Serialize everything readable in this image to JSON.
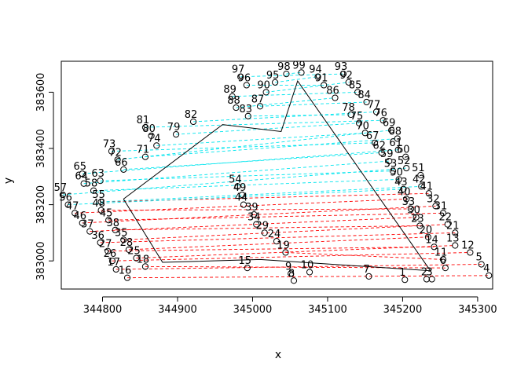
{
  "chart_data": {
    "type": "scatter",
    "title": "",
    "xlabel": "x",
    "ylabel": "y",
    "xlim": [
      344745,
      345320
    ],
    "ylim": [
      382900,
      383710
    ],
    "xticks": [
      344800,
      344900,
      345000,
      345100,
      345200,
      345300
    ],
    "yticks": [
      383000,
      383200,
      383400,
      383600
    ],
    "grid": false,
    "colors": {
      "polygon": "#000000",
      "red_segments": "#ff0000",
      "cyan_segments": "#00e5ee",
      "points": "#000000"
    },
    "points": [
      {
        "id": "1",
        "x": 345203,
        "y": 382933
      },
      {
        "id": "2",
        "x": 345232,
        "y": 382935
      },
      {
        "id": "3",
        "x": 345239,
        "y": 382935
      },
      {
        "id": "4",
        "x": 345315,
        "y": 382948
      },
      {
        "id": "5",
        "x": 345305,
        "y": 382988
      },
      {
        "id": "6",
        "x": 345257,
        "y": 382975
      },
      {
        "id": "7",
        "x": 345155,
        "y": 382945
      },
      {
        "id": "8",
        "x": 345055,
        "y": 382930
      },
      {
        "id": "9",
        "x": 345051,
        "y": 382955
      },
      {
        "id": "10",
        "x": 345076,
        "y": 382960
      },
      {
        "id": "11",
        "x": 345254,
        "y": 383005
      },
      {
        "id": "12",
        "x": 345290,
        "y": 383030
      },
      {
        "id": "13",
        "x": 345270,
        "y": 383055
      },
      {
        "id": "14",
        "x": 345242,
        "y": 383050
      },
      {
        "id": "15",
        "x": 344993,
        "y": 382975
      },
      {
        "id": "16",
        "x": 344833,
        "y": 382940
      },
      {
        "id": "17",
        "x": 344818,
        "y": 382970
      },
      {
        "id": "18",
        "x": 344857,
        "y": 382980
      },
      {
        "id": "19",
        "x": 345044,
        "y": 383030
      },
      {
        "id": "20",
        "x": 345234,
        "y": 383085
      },
      {
        "id": "21",
        "x": 345270,
        "y": 383100
      },
      {
        "id": "22",
        "x": 345260,
        "y": 383130
      },
      {
        "id": "23",
        "x": 345223,
        "y": 383125
      },
      {
        "id": "24",
        "x": 345032,
        "y": 383070
      },
      {
        "id": "25",
        "x": 344845,
        "y": 383010
      },
      {
        "id": "26",
        "x": 344813,
        "y": 383000
      },
      {
        "id": "27",
        "x": 344807,
        "y": 383035
      },
      {
        "id": "28",
        "x": 344835,
        "y": 383040
      },
      {
        "id": "29",
        "x": 345016,
        "y": 383100
      },
      {
        "id": "30",
        "x": 345218,
        "y": 383155
      },
      {
        "id": "31",
        "x": 345254,
        "y": 383170
      },
      {
        "id": "32",
        "x": 345244,
        "y": 383195
      },
      {
        "id": "33",
        "x": 345211,
        "y": 383185
      },
      {
        "id": "34",
        "x": 345005,
        "y": 383130
      },
      {
        "id": "35",
        "x": 344828,
        "y": 383075
      },
      {
        "id": "36",
        "x": 344797,
        "y": 383065
      },
      {
        "id": "37",
        "x": 344783,
        "y": 383105
      },
      {
        "id": "38",
        "x": 344817,
        "y": 383110
      },
      {
        "id": "39",
        "x": 345002,
        "y": 383165
      },
      {
        "id": "40",
        "x": 345205,
        "y": 383220
      },
      {
        "id": "41",
        "x": 345235,
        "y": 383240
      },
      {
        "id": "42",
        "x": 345225,
        "y": 383265
      },
      {
        "id": "43",
        "x": 345201,
        "y": 383255
      },
      {
        "id": "44",
        "x": 344988,
        "y": 383200
      },
      {
        "id": "45",
        "x": 344808,
        "y": 383145
      },
      {
        "id": "46",
        "x": 344773,
        "y": 383135
      },
      {
        "id": "47",
        "x": 344763,
        "y": 383170
      },
      {
        "id": "48",
        "x": 344798,
        "y": 383180
      },
      {
        "id": "49",
        "x": 344986,
        "y": 383235
      },
      {
        "id": "50",
        "x": 345195,
        "y": 383290
      },
      {
        "id": "51",
        "x": 345224,
        "y": 383305
      },
      {
        "id": "52",
        "x": 345205,
        "y": 383330
      },
      {
        "id": "53",
        "x": 345187,
        "y": 383320
      },
      {
        "id": "54",
        "x": 344980,
        "y": 383265
      },
      {
        "id": "55",
        "x": 344798,
        "y": 383210
      },
      {
        "id": "56",
        "x": 344754,
        "y": 383200
      },
      {
        "id": "57",
        "x": 344747,
        "y": 383235
      },
      {
        "id": "58",
        "x": 344788,
        "y": 383250
      },
      {
        "id": "59",
        "x": 345182,
        "y": 383355
      },
      {
        "id": "60",
        "x": 345204,
        "y": 383370
      },
      {
        "id": "61",
        "x": 345194,
        "y": 383395
      },
      {
        "id": "62",
        "x": 345172,
        "y": 383385
      },
      {
        "id": "63",
        "x": 344797,
        "y": 383285
      },
      {
        "id": "64",
        "x": 344775,
        "y": 383275
      },
      {
        "id": "65",
        "x": 344773,
        "y": 383310
      },
      {
        "id": "66",
        "x": 344828,
        "y": 383325
      },
      {
        "id": "67",
        "x": 345163,
        "y": 383420
      },
      {
        "id": "68",
        "x": 345193,
        "y": 383435
      },
      {
        "id": "69",
        "x": 345185,
        "y": 383465
      },
      {
        "id": "70",
        "x": 345150,
        "y": 383455
      },
      {
        "id": "71",
        "x": 344857,
        "y": 383370
      },
      {
        "id": "72",
        "x": 344820,
        "y": 383360
      },
      {
        "id": "73",
        "x": 344812,
        "y": 383390
      },
      {
        "id": "74",
        "x": 344872,
        "y": 383410
      },
      {
        "id": "75",
        "x": 345142,
        "y": 383490
      },
      {
        "id": "76",
        "x": 345174,
        "y": 383500
      },
      {
        "id": "77",
        "x": 345165,
        "y": 383530
      },
      {
        "id": "78",
        "x": 345131,
        "y": 383520
      },
      {
        "id": "79",
        "x": 344898,
        "y": 383450
      },
      {
        "id": "80",
        "x": 344865,
        "y": 383445
      },
      {
        "id": "81",
        "x": 344857,
        "y": 383475
      },
      {
        "id": "82",
        "x": 344921,
        "y": 383495
      },
      {
        "id": "83",
        "x": 344994,
        "y": 383515
      },
      {
        "id": "84",
        "x": 345152,
        "y": 383565
      },
      {
        "id": "85",
        "x": 345140,
        "y": 383600
      },
      {
        "id": "86",
        "x": 345110,
        "y": 383580
      },
      {
        "id": "87",
        "x": 345010,
        "y": 383550
      },
      {
        "id": "88",
        "x": 344978,
        "y": 383545
      },
      {
        "id": "89",
        "x": 344973,
        "y": 383585
      },
      {
        "id": "90",
        "x": 345018,
        "y": 383600
      },
      {
        "id": "91",
        "x": 345095,
        "y": 383625
      },
      {
        "id": "92",
        "x": 345128,
        "y": 383635
      },
      {
        "id": "93",
        "x": 345121,
        "y": 383665
      },
      {
        "id": "94",
        "x": 345087,
        "y": 383655
      },
      {
        "id": "95",
        "x": 345030,
        "y": 383635
      },
      {
        "id": "96",
        "x": 344992,
        "y": 383625
      },
      {
        "id": "97",
        "x": 344984,
        "y": 383655
      },
      {
        "id": "98",
        "x": 345045,
        "y": 383665
      },
      {
        "id": "99",
        "x": 345065,
        "y": 383670
      }
    ],
    "red_segments": [
      [
        "16",
        "4"
      ],
      [
        "17",
        "5"
      ],
      [
        "18",
        "6"
      ],
      [
        "19",
        "11"
      ],
      [
        "26",
        "12"
      ],
      [
        "25",
        "13"
      ],
      [
        "27",
        "14"
      ],
      [
        "28",
        "20"
      ],
      [
        "36",
        "21"
      ],
      [
        "35",
        "22"
      ],
      [
        "38",
        "23"
      ],
      [
        "37",
        "30"
      ],
      [
        "45",
        "31"
      ],
      [
        "46",
        "32"
      ],
      [
        "48",
        "33"
      ],
      [
        "47",
        "40"
      ],
      [
        "55",
        "41"
      ]
    ],
    "cyan_segments": [
      [
        "55",
        "42"
      ],
      [
        "56",
        "43"
      ],
      [
        "58",
        "50"
      ],
      [
        "57",
        "52"
      ],
      [
        "63",
        "53"
      ],
      [
        "64",
        "59"
      ],
      [
        "65",
        "61"
      ],
      [
        "66",
        "62"
      ],
      [
        "73",
        "67"
      ],
      [
        "71",
        "68"
      ],
      [
        "72",
        "69"
      ],
      [
        "74",
        "70"
      ],
      [
        "79",
        "75"
      ],
      [
        "81",
        "76"
      ],
      [
        "82",
        "77"
      ],
      [
        "83",
        "78"
      ],
      [
        "87",
        "84"
      ],
      [
        "88",
        "86"
      ],
      [
        "89",
        "85"
      ],
      [
        "96",
        "91"
      ],
      [
        "90",
        "92"
      ],
      [
        "95",
        "94"
      ],
      [
        "97",
        "93"
      ],
      [
        "98",
        "99"
      ]
    ],
    "polygon": [
      [
        344828,
        383220
      ],
      [
        344880,
        382995
      ],
      [
        345010,
        383005
      ],
      [
        345237,
        382965
      ],
      [
        345060,
        383640
      ],
      [
        345038,
        383460
      ],
      [
        344960,
        383485
      ],
      [
        344828,
        383220
      ]
    ]
  }
}
